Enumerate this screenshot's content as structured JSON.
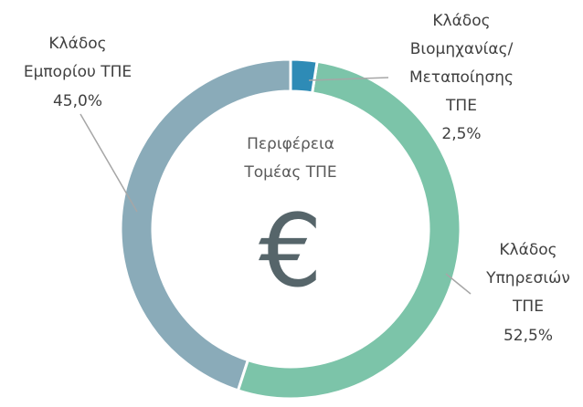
{
  "chart_data": {
    "type": "donut",
    "center_label": "Περιφέρεια\nΤομέας ΤΠΕ",
    "center_symbol": "€",
    "categories": [
      "Κλάδος\nΒιομηχανίας/\nΜεταποίησης\nΤΠΕ",
      "Κλάδος\nΥπηρεσιών\nΤΠΕ",
      "Κλάδος\nΕμπορίου ΤΠΕ"
    ],
    "values": [
      2.5,
      52.5,
      45.0
    ],
    "value_labels": [
      "2,5%",
      "52,5%",
      "45,0%"
    ],
    "colors": [
      "#2e8bb6",
      "#7cc4a9",
      "#8aabb9"
    ]
  }
}
